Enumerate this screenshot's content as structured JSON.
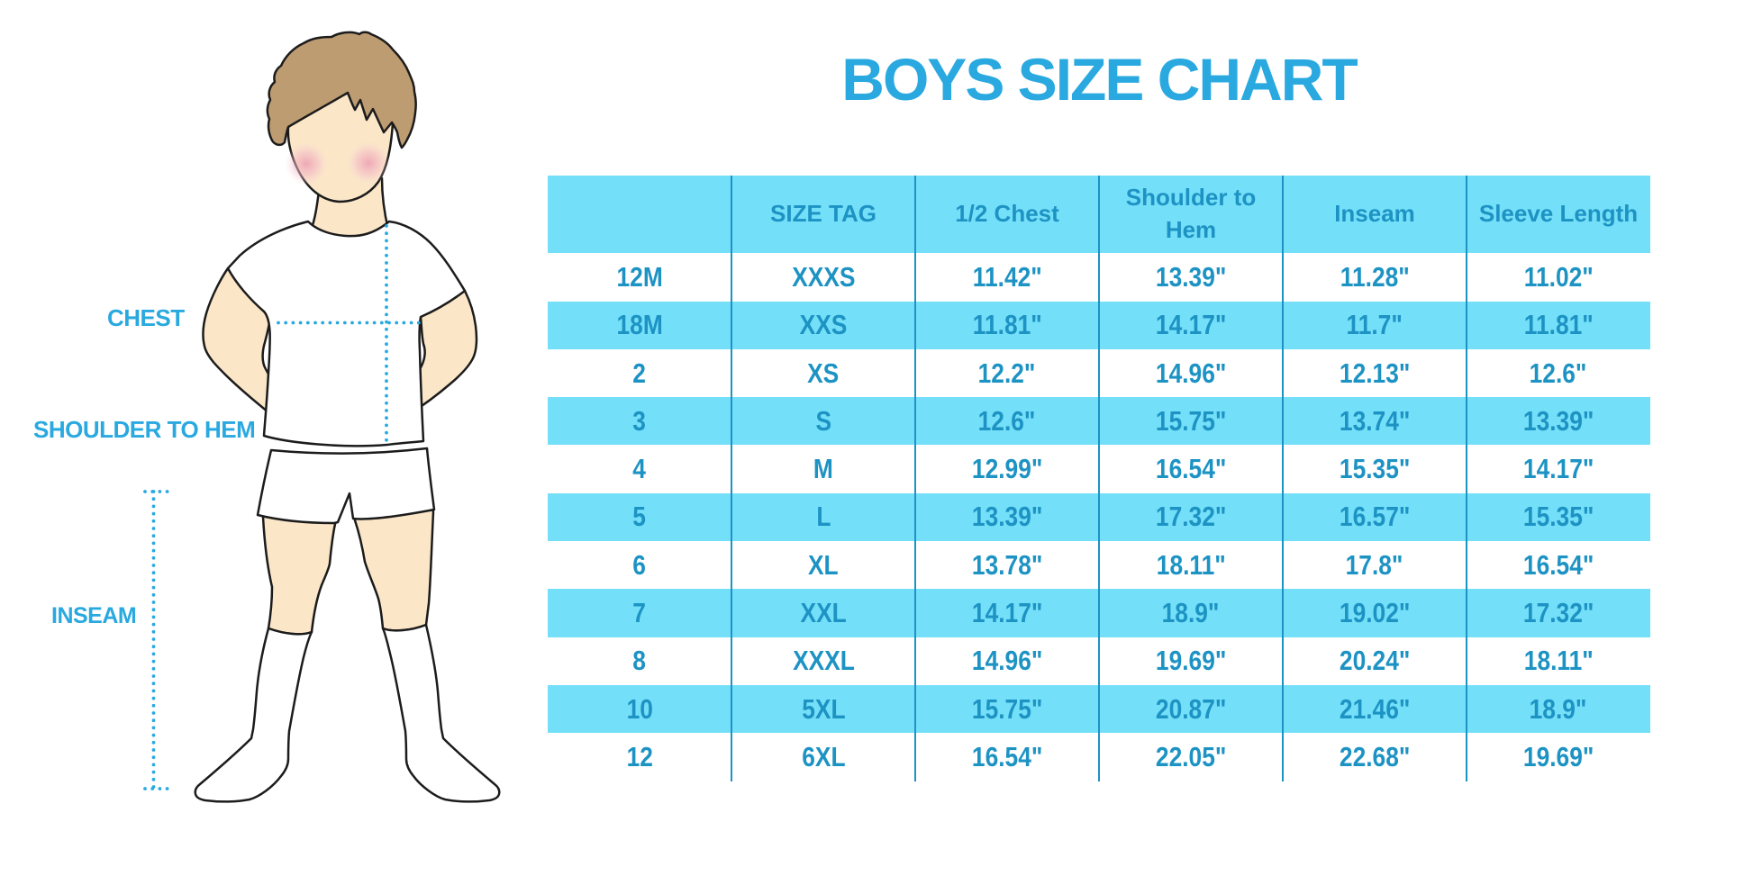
{
  "page": {
    "title": "BOYS SIZE CHART",
    "background_color": "#ffffff"
  },
  "colors": {
    "accent_blue": "#29A9E0",
    "table_text_blue": "#1D93C4",
    "row_cyan": "#74DFF8",
    "row_white": "#ffffff",
    "separator_blue": "#1D93C4",
    "skin": "#FBE6C8",
    "hair": "#BE9C72",
    "blush_pink": "#EFA3B9",
    "outline_black": "#1C1C1C"
  },
  "figure": {
    "description": "boy-figure-illustration",
    "labels": {
      "chest": "CHEST",
      "shoulder_to_hem": "SHOULDER TO HEM",
      "inseam": "INSEAM"
    }
  },
  "table": {
    "columns": [
      "",
      "SIZE TAG",
      "1/2 Chest",
      "Shoulder to Hem",
      "Inseam",
      "Sleeve Length"
    ],
    "rows": [
      [
        "12M",
        "XXXS",
        "11.42\"",
        "13.39\"",
        "11.28\"",
        "11.02\""
      ],
      [
        "18M",
        "XXS",
        "11.81\"",
        "14.17\"",
        "11.7\"",
        "11.81\""
      ],
      [
        "2",
        "XS",
        "12.2\"",
        "14.96\"",
        "12.13\"",
        "12.6\""
      ],
      [
        "3",
        "S",
        "12.6\"",
        "15.75\"",
        "13.74\"",
        "13.39\""
      ],
      [
        "4",
        "M",
        "12.99\"",
        "16.54\"",
        "15.35\"",
        "14.17\""
      ],
      [
        "5",
        "L",
        "13.39\"",
        "17.32\"",
        "16.57\"",
        "15.35\""
      ],
      [
        "6",
        "XL",
        "13.78\"",
        "18.11\"",
        "17.8\"",
        "16.54\""
      ],
      [
        "7",
        "XXL",
        "14.17\"",
        "18.9\"",
        "19.02\"",
        "17.32\""
      ],
      [
        "8",
        "XXXL",
        "14.96\"",
        "19.69\"",
        "20.24\"",
        "18.11\""
      ],
      [
        "10",
        "5XL",
        "15.75\"",
        "20.87\"",
        "21.46\"",
        "18.9\""
      ],
      [
        "12",
        "6XL",
        "16.54\"",
        "22.05\"",
        "22.68\"",
        "19.69\""
      ]
    ]
  },
  "chart_data": {
    "type": "table",
    "title": "BOYS SIZE CHART",
    "columns": [
      "",
      "SIZE TAG",
      "1/2 Chest",
      "Shoulder to Hem",
      "Inseam",
      "Sleeve Length"
    ],
    "rows": [
      [
        "12M",
        "XXXS",
        "11.42\"",
        "13.39\"",
        "11.28\"",
        "11.02\""
      ],
      [
        "18M",
        "XXS",
        "11.81\"",
        "14.17\"",
        "11.7\"",
        "11.81\""
      ],
      [
        "2",
        "XS",
        "12.2\"",
        "14.96\"",
        "12.13\"",
        "12.6\""
      ],
      [
        "3",
        "S",
        "12.6\"",
        "15.75\"",
        "13.74\"",
        "13.39\""
      ],
      [
        "4",
        "M",
        "12.99\"",
        "16.54\"",
        "15.35\"",
        "14.17\""
      ],
      [
        "5",
        "L",
        "13.39\"",
        "17.32\"",
        "16.57\"",
        "15.35\""
      ],
      [
        "6",
        "XL",
        "13.78\"",
        "18.11\"",
        "17.8\"",
        "16.54\""
      ],
      [
        "7",
        "XXL",
        "14.17\"",
        "18.9\"",
        "19.02\"",
        "17.32\""
      ],
      [
        "8",
        "XXXL",
        "14.96\"",
        "19.69\"",
        "20.24\"",
        "18.11\""
      ],
      [
        "10",
        "5XL",
        "15.75\"",
        "20.87\"",
        "21.46\"",
        "18.9\""
      ],
      [
        "12",
        "6XL",
        "16.54\"",
        "22.05\"",
        "22.68\"",
        "19.69\""
      ]
    ],
    "notes": "Alternating white/cyan rows; measurement illustration labels: CHEST, SHOULDER TO HEM, INSEAM"
  }
}
